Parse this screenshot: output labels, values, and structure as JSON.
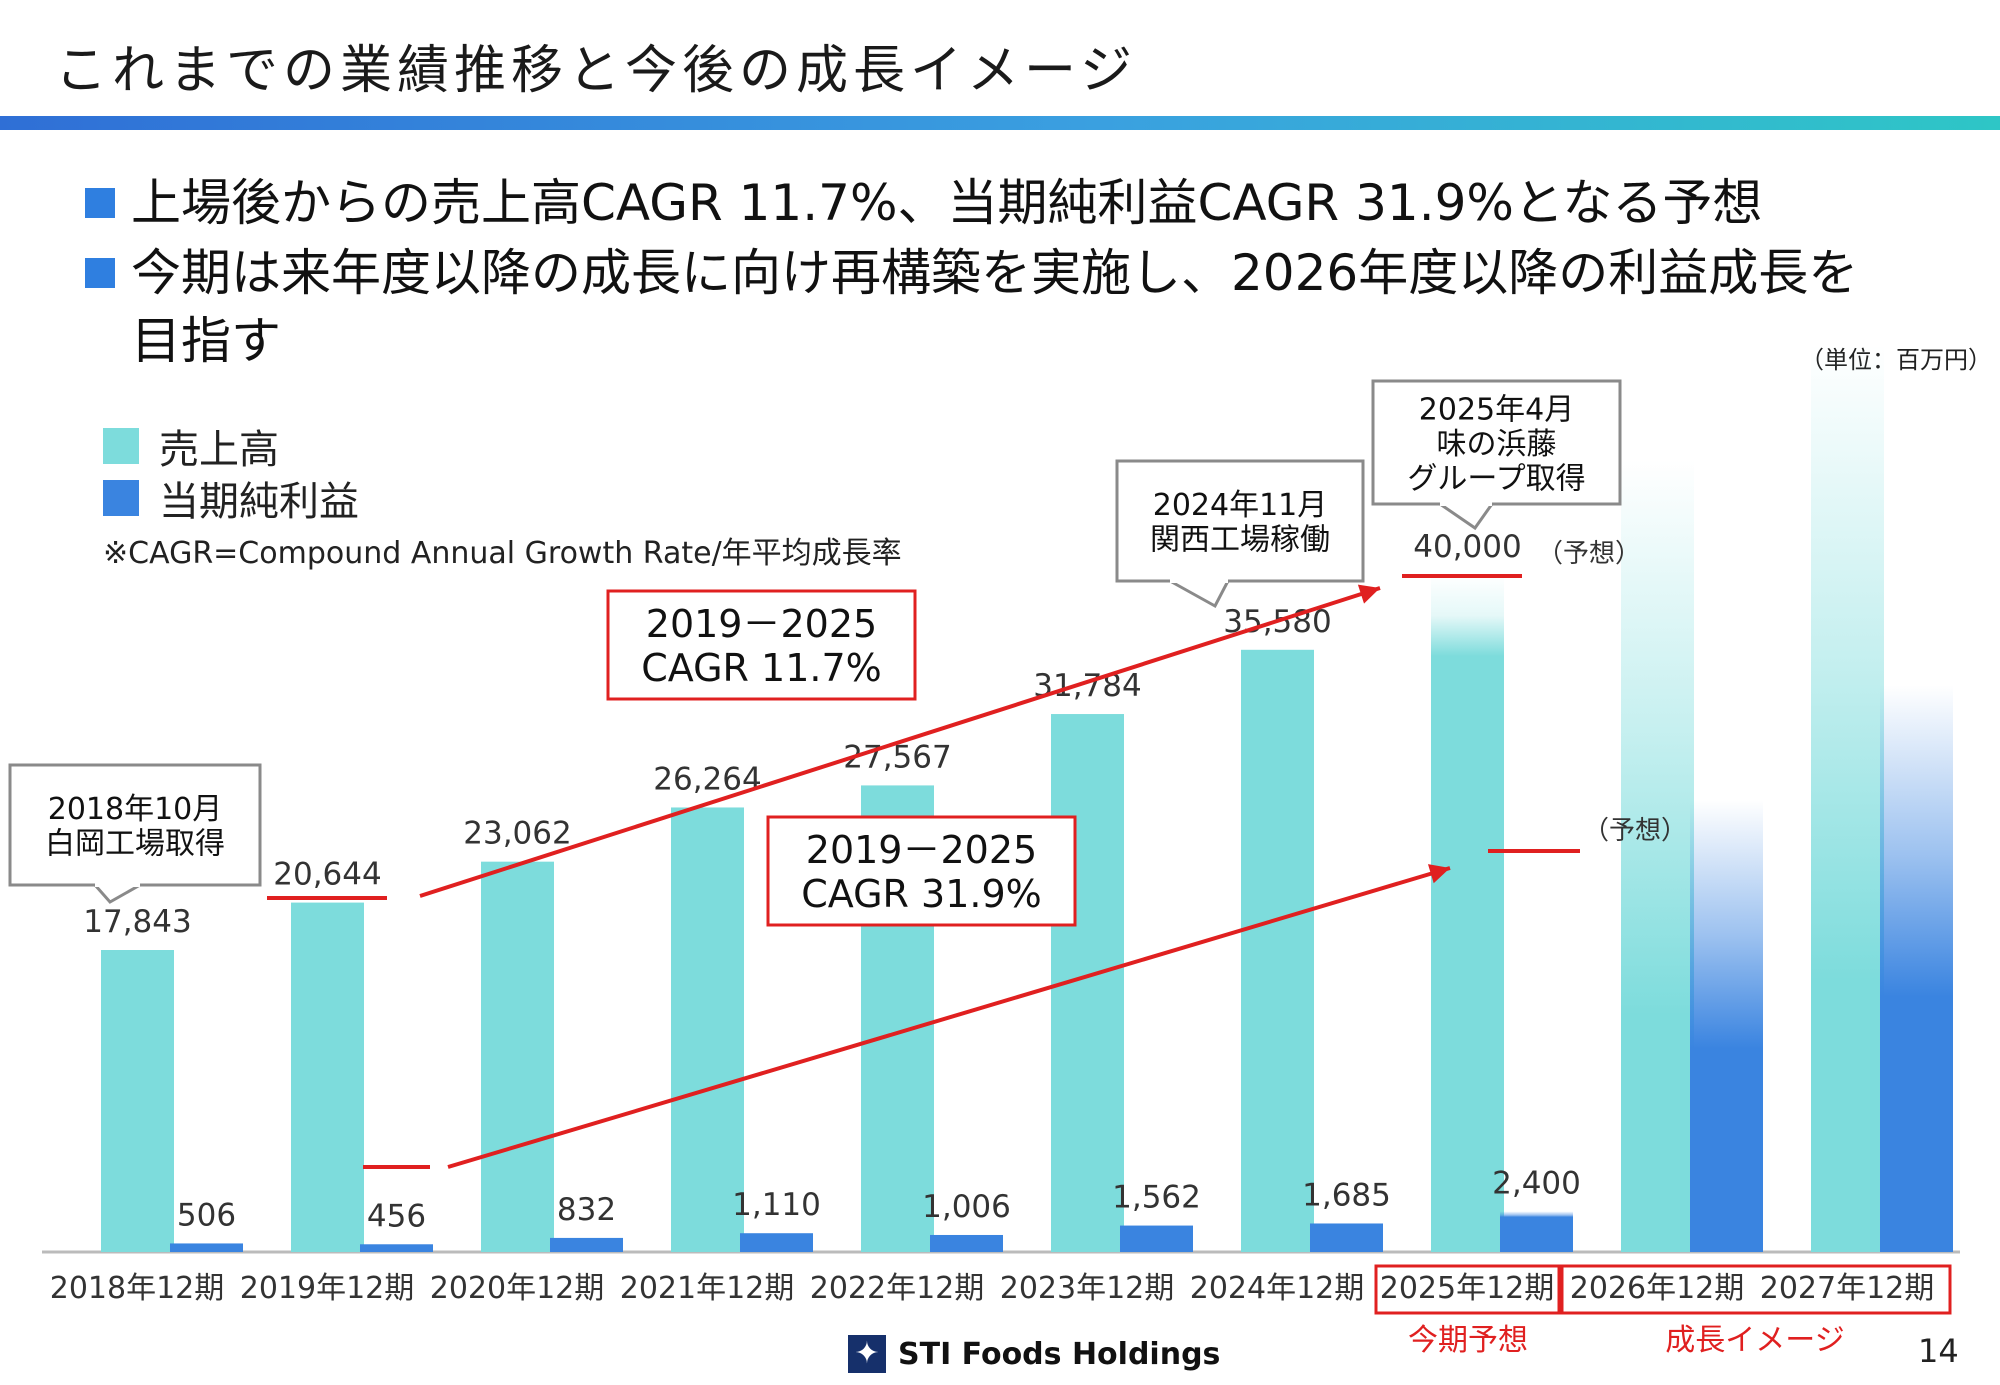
{
  "title": "これまでの業績推移と今後の成長イメージ",
  "bullets": [
    "上場後からの売上高CAGR 11.7%、当期純利益CAGR 31.9%となる予想",
    "今期は来年度以降の成長に向け再構築を実施し、2026年度以降の利益成長を",
    "目指す"
  ],
  "unit_note": "（単位：百万円）",
  "legend": {
    "sales": "売上高",
    "profit": "当期純利益"
  },
  "cagr_note": "※CAGR=Compound Annual Growth Rate/年平均成長率",
  "colors": {
    "sales": "#7ddcdc",
    "profit": "#3a84e0",
    "accent_red": "#e02020"
  },
  "callouts": {
    "c2018": [
      "2018年10月",
      "白岡工場取得"
    ],
    "c2024": [
      "2024年11月",
      "関西工場稼働"
    ],
    "c2025": [
      "2025年4月",
      "味の浜藤",
      "グループ取得"
    ],
    "cagr_sales": [
      "2019－2025",
      "CAGR 11.7%"
    ],
    "cagr_profit": [
      "2019－2025",
      "CAGR 31.9%"
    ]
  },
  "forecast_tag": "（予想）",
  "period_tags": {
    "current": "今期予想",
    "growth": "成長イメージ"
  },
  "footer": {
    "company": "STI Foods Holdings",
    "page": "14"
  },
  "chart_data": {
    "type": "bar",
    "categories": [
      "2018年12期",
      "2019年12期",
      "2020年12期",
      "2021年12期",
      "2022年12期",
      "2023年12期",
      "2024年12期",
      "2025年12期",
      "2026年12期",
      "2027年12期"
    ],
    "series": [
      {
        "name": "売上高",
        "values": [
          17843,
          20644,
          23062,
          26264,
          27567,
          31784,
          35580,
          40000,
          null,
          null
        ],
        "labels": [
          "17,843",
          "20,644",
          "23,062",
          "26,264",
          "27,567",
          "31,784",
          "35,580",
          "40,000",
          "",
          ""
        ]
      },
      {
        "name": "当期純利益",
        "values": [
          506,
          456,
          832,
          1110,
          1006,
          1562,
          1685,
          2400,
          null,
          null
        ],
        "labels": [
          "506",
          "456",
          "832",
          "1,110",
          "1,006",
          "1,562",
          "1,685",
          "2,400",
          "",
          ""
        ]
      }
    ],
    "forecast_categories": [
      "2025年12期"
    ],
    "growth_image_categories": [
      "2026年12期",
      "2027年12期"
    ]
  }
}
